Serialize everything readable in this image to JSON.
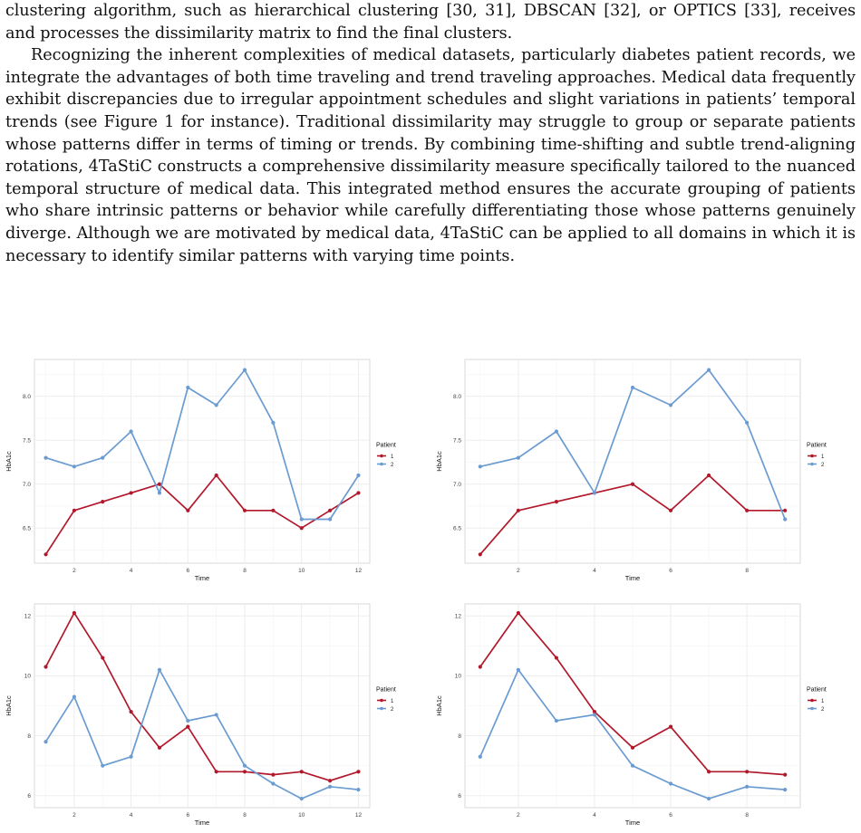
{
  "text": {
    "para1": "clustering algorithm, such as hierarchical clustering [30, 31], DBSCAN [32], or OPTICS [33], receives and processes the dissimilarity matrix to find the final clusters.",
    "para2": "Recognizing the inherent complexities of medical datasets, particularly diabetes patient records, we integrate the advantages of both time traveling and trend traveling approaches. Medical data frequently exhibit discrepancies due to irregular appointment schedules and slight variations in patients’ temporal trends (see Figure 1 for instance). Traditional dissimilarity may struggle to group or separate patients whose patterns differ in terms of timing or trends. By combining time-shifting and subtle trend-aligning rotations, 4TaStiC constructs a comprehensive dissimilarity measure specifically tailored to the nuanced temporal structure of medical data. This integrated method ensures the accurate grouping of patients who share intrinsic patterns or behavior while carefully differentiating those whose patterns genuinely diverge. Although we are motivated by medical data, 4TaStiC can be applied to all domains in which it is necessary to identify similar patterns with varying time points."
  },
  "colors": {
    "patient1": "#b2182b",
    "patient2": "#6a9bd1",
    "grid": "#ebebeb",
    "panel_border": "#cfcfcf"
  },
  "chart_data": [
    {
      "type": "line",
      "xlabel": "Time",
      "ylabel": "HbA1c",
      "legend_title": "Patient",
      "legend_position": "right",
      "xlim": [
        0.6,
        12.4
      ],
      "ylim": [
        6.1,
        8.42
      ],
      "xticks": [
        2,
        4,
        6,
        8,
        10,
        12
      ],
      "yticks": [
        6.5,
        7.0,
        7.5,
        8.0
      ],
      "ytick_labels": [
        "6.5",
        "7.0",
        "7.5",
        "8.0"
      ],
      "grid": true,
      "series": [
        {
          "name": "1",
          "x": [
            1,
            2,
            3,
            4,
            5,
            6,
            7,
            8,
            9,
            10,
            11,
            12
          ],
          "y": [
            6.2,
            6.7,
            6.8,
            6.9,
            7.0,
            6.7,
            7.1,
            6.7,
            6.7,
            6.5,
            6.7,
            6.9
          ]
        },
        {
          "name": "2",
          "x": [
            1,
            2,
            3,
            4,
            5,
            6,
            7,
            8,
            9,
            10,
            11,
            12
          ],
          "y": [
            7.3,
            7.2,
            7.3,
            7.6,
            6.9,
            8.1,
            7.9,
            8.3,
            7.7,
            6.6,
            6.6,
            7.1
          ]
        }
      ]
    },
    {
      "type": "line",
      "xlabel": "Time",
      "ylabel": "HbA1c",
      "legend_title": "Patient",
      "legend_position": "right",
      "xlim": [
        0.6,
        9.4
      ],
      "ylim": [
        6.1,
        8.42
      ],
      "xticks": [
        2,
        4,
        6,
        8
      ],
      "yticks": [
        6.5,
        7.0,
        7.5,
        8.0
      ],
      "ytick_labels": [
        "6.5",
        "7.0",
        "7.5",
        "8.0"
      ],
      "grid": true,
      "series": [
        {
          "name": "1",
          "x": [
            1,
            2,
            3,
            4,
            5,
            6,
            7,
            8,
            9
          ],
          "y": [
            6.2,
            6.7,
            6.8,
            6.9,
            7.0,
            6.7,
            7.1,
            6.7,
            6.7
          ]
        },
        {
          "name": "2",
          "x": [
            1,
            2,
            3,
            4,
            5,
            6,
            7,
            8,
            9
          ],
          "y": [
            7.2,
            7.3,
            7.6,
            6.9,
            8.1,
            7.9,
            8.3,
            7.7,
            6.6
          ]
        }
      ]
    },
    {
      "type": "line",
      "xlabel": "Time",
      "ylabel": "HbA1c",
      "legend_title": "Patient",
      "legend_position": "right",
      "xlim": [
        0.6,
        12.4
      ],
      "ylim": [
        5.6,
        12.4
      ],
      "xticks": [
        2,
        4,
        6,
        8,
        10,
        12
      ],
      "yticks": [
        6,
        8,
        10,
        12
      ],
      "ytick_labels": [
        "6",
        "8",
        "10",
        "12"
      ],
      "grid": true,
      "series": [
        {
          "name": "1",
          "x": [
            1,
            2,
            3,
            4,
            5,
            6,
            7,
            8,
            9,
            10,
            11,
            12
          ],
          "y": [
            10.3,
            12.1,
            10.6,
            8.8,
            7.6,
            8.3,
            6.8,
            6.8,
            6.7,
            6.8,
            6.5,
            6.8
          ]
        },
        {
          "name": "2",
          "x": [
            1,
            2,
            3,
            4,
            5,
            6,
            7,
            8,
            9,
            10,
            11,
            12
          ],
          "y": [
            7.8,
            9.3,
            7.0,
            7.3,
            10.2,
            8.5,
            8.7,
            7.0,
            6.4,
            5.9,
            6.3,
            6.2
          ]
        }
      ]
    },
    {
      "type": "line",
      "xlabel": "Time",
      "ylabel": "HbA1c",
      "legend_title": "Patient",
      "legend_position": "right",
      "xlim": [
        0.6,
        9.4
      ],
      "ylim": [
        5.6,
        12.4
      ],
      "xticks": [
        2,
        4,
        6,
        8
      ],
      "yticks": [
        6,
        8,
        10,
        12
      ],
      "ytick_labels": [
        "6",
        "8",
        "10",
        "12"
      ],
      "grid": true,
      "series": [
        {
          "name": "1",
          "x": [
            1,
            2,
            3,
            4,
            5,
            6,
            7,
            8,
            9
          ],
          "y": [
            10.3,
            12.1,
            10.6,
            8.8,
            7.6,
            8.3,
            6.8,
            6.8,
            6.7
          ]
        },
        {
          "name": "2",
          "x": [
            1,
            2,
            3,
            4,
            5,
            6,
            7,
            8,
            9
          ],
          "y": [
            7.3,
            10.2,
            8.5,
            8.7,
            7.0,
            6.4,
            5.9,
            6.3,
            6.2
          ]
        }
      ]
    }
  ]
}
